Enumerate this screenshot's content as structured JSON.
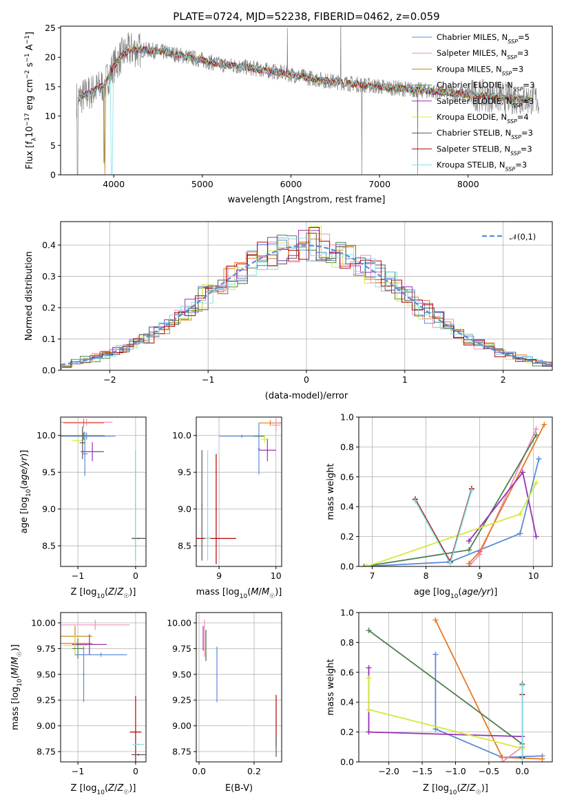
{
  "figure": {
    "title": "PLATE=0724, MJD=52238, FIBERID=0462, z=0.059"
  },
  "colors": {
    "Chabrier MILES": "#5b8ad8",
    "Salpeter MILES": "#ec8fbf",
    "Kroupa MILES": "#b7891c",
    "Chabrier ELODIE": "#4e7f4e",
    "Salpeter ELODIE": "#9a2fb3",
    "Kroupa ELODIE": "#d4e83a",
    "Chabrier STELIB": "#555555",
    "Salpeter STELIB": "#b00000",
    "Kroupa STELIB": "#7fe0e8",
    "data": "#808080",
    "gaussian": "#5b8ad8",
    "orange": "#e87722"
  },
  "chart_data": [
    {
      "type": "line",
      "id": "spectrum",
      "title": "PLATE=0724, MJD=52238, FIBERID=0462, z=0.059",
      "xlabel": "wavelength [Angstrom, rest frame]",
      "ylabel": "Flux [f_λ10^-17 erg cm^-2 s^-1 A^-1]",
      "xlim": [
        3400,
        8950
      ],
      "ylim": [
        0,
        25.3
      ],
      "xticks": [
        4000,
        5000,
        6000,
        7000,
        8000
      ],
      "yticks": [
        0,
        5,
        10,
        15,
        20,
        25
      ],
      "legend_position": "top-right",
      "legend": [
        {
          "name": "Chabrier MILES",
          "nssp": "5"
        },
        {
          "name": "Salpeter MILES",
          "nssp": "3"
        },
        {
          "name": "Kroupa MILES",
          "nssp": "3"
        },
        {
          "name": "Chabrier ELODIE",
          "nssp": "3"
        },
        {
          "name": "Salpeter ELODIE",
          "nssp": "3"
        },
        {
          "name": "Kroupa ELODIE",
          "nssp": "4"
        },
        {
          "name": "Chabrier STELIB",
          "nssp": "3"
        },
        {
          "name": "Salpeter STELIB",
          "nssp": "3"
        },
        {
          "name": "Kroupa STELIB",
          "nssp": "3"
        }
      ],
      "model_continuum": {
        "x": [
          3600,
          3700,
          3800,
          3900,
          4000,
          4100,
          4200,
          4400,
          4600,
          4800,
          5000,
          5200,
          5500,
          5800,
          6100,
          6400,
          6700,
          7000,
          7300,
          7600,
          7900,
          8200,
          8500,
          8800
        ],
        "y": [
          13.0,
          13.8,
          14.5,
          15.5,
          18.5,
          20.5,
          21.3,
          21.2,
          20.8,
          20.2,
          19.5,
          18.8,
          18.3,
          17.6,
          16.8,
          16.0,
          15.5,
          15.0,
          14.6,
          14.2,
          13.8,
          13.4,
          13.0,
          12.8
        ]
      }
    },
    {
      "type": "line",
      "id": "residuals",
      "xlabel": "(data-model)/error",
      "ylabel": "Normed distribution",
      "xlim": [
        -2.5,
        2.5
      ],
      "ylim": [
        0,
        0.475
      ],
      "xticks": [
        -2,
        -1,
        0,
        1,
        2
      ],
      "yticks": [
        0.0,
        0.1,
        0.2,
        0.3,
        0.4
      ],
      "legend": [
        "𝒩(0,1)"
      ],
      "legend_position": "top-right",
      "grid": true
    },
    {
      "type": "scatter",
      "id": "age-vs-Z",
      "xlabel": "Z [log10(Z/Z☉)]",
      "ylabel": "age  [log10(age/yr)]",
      "xlim": [
        -1.3,
        0.18
      ],
      "ylim": [
        8.22,
        10.25
      ],
      "xticks": [
        -1,
        0
      ],
      "yticks": [
        8.5,
        9.0,
        9.5,
        10.0
      ],
      "grid": true,
      "points": [
        {
          "x": -0.85,
          "y": 10.18,
          "xerr": 0.45,
          "yerr": 0.05,
          "c": "Salpeter MILES"
        },
        {
          "x": -0.9,
          "y": 10.17,
          "xerr": 0.35,
          "yerr": 0.06,
          "c": "orange"
        },
        {
          "x": -0.92,
          "y": 10.0,
          "xerr": 0.38,
          "yerr": 0.08,
          "c": "Kroupa MILES"
        },
        {
          "x": -0.9,
          "y": 9.99,
          "xerr": 0.38,
          "yerr": 0.05,
          "c": "Chabrier ELODIE"
        },
        {
          "x": -0.85,
          "y": 9.99,
          "xerr": 0.5,
          "yerr": 0.05,
          "c": "Chabrier MILES"
        },
        {
          "x": -1.0,
          "y": 9.93,
          "xerr": 0.1,
          "yerr": 0.05,
          "c": "Kroupa ELODIE"
        },
        {
          "x": -0.92,
          "y": 9.9,
          "xerr": 0.05,
          "yerr": 0.22,
          "c": "Chabrier STELIB"
        },
        {
          "x": -0.88,
          "y": 9.75,
          "xerr": 0.05,
          "yerr": 0.3,
          "c": "Chabrier MILES"
        },
        {
          "x": -0.75,
          "y": 9.78,
          "xerr": 0.2,
          "yerr": 0.13,
          "c": "Salpeter ELODIE"
        },
        {
          "x": 0.0,
          "y": 9.05,
          "xerr": 0.01,
          "yerr": 0.75,
          "c": "Chabrier STELIB"
        },
        {
          "x": 0.0,
          "y": 9.05,
          "xerr": 0.01,
          "yerr": 0.75,
          "c": "Kroupa STELIB"
        },
        {
          "x": 0.05,
          "y": 8.6,
          "xerr": 0.12,
          "yerr": 0.01,
          "c": "Kroupa STELIB"
        },
        {
          "x": 0.05,
          "y": 8.6,
          "xerr": 0.12,
          "yerr": 0.01,
          "c": "Chabrier STELIB"
        }
      ]
    },
    {
      "type": "scatter",
      "id": "age-vs-mass",
      "xlabel": "mass [log10(M/M☉)]",
      "ylabel": "",
      "xlim": [
        8.6,
        10.1
      ],
      "ylim": [
        8.22,
        10.25
      ],
      "xticks": [
        9,
        10
      ],
      "yticks": [
        8.5,
        9.0,
        9.5,
        10.0
      ],
      "grid": true,
      "points": [
        {
          "x": 9.9,
          "y": 10.17,
          "xerr": 0.2,
          "yerr": 0.04,
          "c": "orange"
        },
        {
          "x": 10.0,
          "y": 10.14,
          "xerr": 0.08,
          "yerr": 0.08,
          "c": "Salpeter MILES"
        },
        {
          "x": 9.4,
          "y": 9.99,
          "xerr": 0.4,
          "yerr": 0.02,
          "c": "Chabrier MILES"
        },
        {
          "x": 9.7,
          "y": 9.99,
          "xerr": 0.1,
          "yerr": 0.02,
          "c": "Chabrier ELODIE"
        },
        {
          "x": 9.8,
          "y": 9.95,
          "xerr": 0.07,
          "yerr": 0.05,
          "c": "Kroupa ELODIE"
        },
        {
          "x": 9.7,
          "y": 9.82,
          "xerr": 0.02,
          "yerr": 0.35,
          "c": "Chabrier MILES"
        },
        {
          "x": 9.85,
          "y": 9.8,
          "xerr": 0.15,
          "yerr": 0.15,
          "c": "Salpeter ELODIE"
        },
        {
          "x": 8.7,
          "y": 9.05,
          "xerr": 0.01,
          "yerr": 0.75,
          "c": "Chabrier STELIB"
        },
        {
          "x": 8.8,
          "y": 9.05,
          "xerr": 0.01,
          "yerr": 0.75,
          "c": "Kroupa STELIB"
        },
        {
          "x": 8.95,
          "y": 9.0,
          "xerr": 0.01,
          "yerr": 0.75,
          "c": "Salpeter STELIB"
        },
        {
          "x": 8.95,
          "y": 8.6,
          "xerr": 0.35,
          "yerr": 0.01,
          "c": "Salpeter STELIB"
        },
        {
          "x": 8.8,
          "y": 8.6,
          "xerr": 0.05,
          "yerr": 0.01,
          "c": "Kroupa STELIB"
        }
      ]
    },
    {
      "type": "line",
      "id": "massweight-vs-age",
      "xlabel": "age  [log10(age/yr)]",
      "ylabel": "mass weight",
      "xlim": [
        6.75,
        10.35
      ],
      "ylim": [
        0,
        1.0
      ],
      "xticks": [
        7,
        8,
        9,
        10
      ],
      "yticks": [
        0.0,
        0.2,
        0.4,
        0.6,
        0.8,
        1.0
      ],
      "grid": true,
      "series": [
        {
          "c": "Chabrier MILES",
          "x": [
            6.85,
            8.45,
            9.75,
            10.1
          ],
          "y": [
            0.0,
            0.03,
            0.22,
            0.72
          ]
        },
        {
          "c": "Salpeter MILES",
          "x": [
            8.8,
            9.0,
            10.05
          ],
          "y": [
            0.0,
            0.08,
            0.92
          ]
        },
        {
          "c": "orange",
          "x": [
            8.8,
            9.0,
            10.2
          ],
          "y": [
            0.02,
            0.1,
            0.95
          ]
        },
        {
          "c": "Chabrier ELODIE",
          "x": [
            6.85,
            8.8,
            10.05
          ],
          "y": [
            0.0,
            0.11,
            0.88
          ]
        },
        {
          "c": "Salpeter ELODIE",
          "x": [
            8.8,
            9.8,
            10.05
          ],
          "y": [
            0.17,
            0.63,
            0.2
          ]
        },
        {
          "c": "Kroupa ELODIE",
          "x": [
            6.9,
            9.75,
            10.05
          ],
          "y": [
            0.0,
            0.35,
            0.56
          ]
        },
        {
          "c": "Chabrier STELIB",
          "x": [
            7.8,
            8.45,
            8.85
          ],
          "y": [
            0.45,
            0.03,
            0.52
          ]
        },
        {
          "c": "Salpeter STELIB",
          "x": [
            7.8,
            8.45,
            8.85
          ],
          "y": [
            0.45,
            0.03,
            0.52
          ]
        },
        {
          "c": "Kroupa STELIB",
          "x": [
            7.8,
            8.45,
            8.85
          ],
          "y": [
            0.44,
            0.02,
            0.51
          ]
        }
      ]
    },
    {
      "type": "scatter",
      "id": "mass-vs-Z",
      "xlabel": "Z [log10(Z/Z☉)]",
      "ylabel": "mass [log10(M/M☉)]",
      "xlim": [
        -1.3,
        0.18
      ],
      "ylim": [
        8.65,
        10.1
      ],
      "xticks": [
        -1,
        0
      ],
      "yticks": [
        8.75,
        9.0,
        9.25,
        9.5,
        9.75,
        10.0
      ],
      "grid": true,
      "points": [
        {
          "x": -0.7,
          "y": 9.98,
          "xerr": 0.6,
          "yerr": 0.05,
          "c": "Salpeter MILES"
        },
        {
          "x": -1.05,
          "y": 9.87,
          "xerr": 0.3,
          "yerr": 0.1,
          "c": "Kroupa MILES"
        },
        {
          "x": -1.05,
          "y": 9.8,
          "xerr": 0.3,
          "yerr": 0.1,
          "c": "orange"
        },
        {
          "x": -0.8,
          "y": 9.79,
          "xerr": 0.3,
          "yerr": 0.1,
          "c": "Salpeter ELODIE"
        },
        {
          "x": -1.05,
          "y": 9.78,
          "xerr": 0.2,
          "yerr": 0.1,
          "c": "Kroupa ELODIE"
        },
        {
          "x": -1.0,
          "y": 9.75,
          "xerr": 0.1,
          "yerr": 0.1,
          "c": "Chabrier ELODIE"
        },
        {
          "x": -0.6,
          "y": 9.69,
          "xerr": 0.45,
          "yerr": 0.02,
          "c": "Chabrier MILES"
        },
        {
          "x": -0.9,
          "y": 9.5,
          "xerr": 0.02,
          "yerr": 0.27,
          "c": "Chabrier MILES"
        },
        {
          "x": 0.0,
          "y": 8.94,
          "xerr": 0.1,
          "yerr": 0.35,
          "c": "Salpeter STELIB"
        },
        {
          "x": 0.05,
          "y": 8.82,
          "xerr": 0.1,
          "yerr": 0.01,
          "c": "Kroupa STELIB"
        },
        {
          "x": 0.05,
          "y": 8.72,
          "xerr": 0.12,
          "yerr": 0.01,
          "c": "Chabrier STELIB"
        }
      ]
    },
    {
      "type": "scatter",
      "id": "mass-vs-EBV",
      "xlabel": "E(B-V)",
      "ylabel": "",
      "xlim": [
        -0.01,
        0.3
      ],
      "ylim": [
        8.65,
        10.1
      ],
      "xticks": [
        0.0,
        0.2
      ],
      "yticks": [
        8.75,
        9.0,
        9.25,
        9.5,
        9.75,
        10.0
      ],
      "grid": true,
      "points": [
        {
          "x": 0.02,
          "y": 9.85,
          "xerr": 0.001,
          "yerr": 0.18,
          "c": "Salpeter MILES"
        },
        {
          "x": 0.015,
          "y": 9.85,
          "xerr": 0.001,
          "yerr": 0.12,
          "c": "Salpeter ELODIE"
        },
        {
          "x": 0.025,
          "y": 9.78,
          "xerr": 0.001,
          "yerr": 0.15,
          "c": "Kroupa ELODIE"
        },
        {
          "x": 0.025,
          "y": 9.78,
          "xerr": 0.001,
          "yerr": 0.15,
          "c": "Kroupa MILES"
        },
        {
          "x": 0.025,
          "y": 9.78,
          "xerr": 0.001,
          "yerr": 0.15,
          "c": "Chabrier ELODIE"
        },
        {
          "x": 0.065,
          "y": 9.5,
          "xerr": 0.001,
          "yerr": 0.27,
          "c": "Chabrier MILES"
        },
        {
          "x": 0.28,
          "y": 9.05,
          "xerr": 0.001,
          "yerr": 0.25,
          "c": "Salpeter STELIB"
        },
        {
          "x": 0.28,
          "y": 8.8,
          "xerr": 0.001,
          "yerr": 0.1,
          "c": "Chabrier STELIB"
        }
      ]
    },
    {
      "type": "line",
      "id": "massweight-vs-Z",
      "xlabel": "Z [log10(Z/Z☉)]",
      "ylabel": "mass weight",
      "xlim": [
        -2.45,
        0.45
      ],
      "ylim": [
        0,
        1.0
      ],
      "xticks": [
        -2.0,
        -1.5,
        -1.0,
        -0.5,
        0.0
      ],
      "yticks": [
        0.0,
        0.2,
        0.4,
        0.6,
        0.8,
        1.0
      ],
      "grid": true,
      "series": [
        {
          "c": "Chabrier MILES",
          "x": [
            -1.3,
            -1.3,
            -0.3,
            0.3
          ],
          "y": [
            0.72,
            0.22,
            0.03,
            0.04
          ]
        },
        {
          "c": "orange",
          "x": [
            -1.3,
            -0.3,
            0.3
          ],
          "y": [
            0.95,
            0.03,
            0.02
          ]
        },
        {
          "c": "Salpeter MILES",
          "x": [
            -0.3,
            0.0
          ],
          "y": [
            0.0,
            0.1
          ]
        },
        {
          "c": "Chabrier ELODIE",
          "x": [
            -2.3,
            0.0
          ],
          "y": [
            0.88,
            0.12
          ]
        },
        {
          "c": "Salpeter ELODIE",
          "x": [
            -2.3,
            -2.3,
            0.0
          ],
          "y": [
            0.63,
            0.2,
            0.17
          ]
        },
        {
          "c": "Kroupa ELODIE",
          "x": [
            -2.3,
            -2.3,
            0.0
          ],
          "y": [
            0.56,
            0.35,
            0.09
          ]
        },
        {
          "c": "Chabrier STELIB",
          "x": [
            0.0,
            0.0,
            0.0
          ],
          "y": [
            0.52,
            0.45,
            0.03
          ]
        },
        {
          "c": "Salpeter STELIB",
          "x": [
            0.0,
            0.0
          ],
          "y": [
            0.45,
            0.03
          ]
        },
        {
          "c": "Kroupa STELIB",
          "x": [
            0.0,
            0.0
          ],
          "y": [
            0.51,
            0.02
          ]
        }
      ]
    }
  ]
}
